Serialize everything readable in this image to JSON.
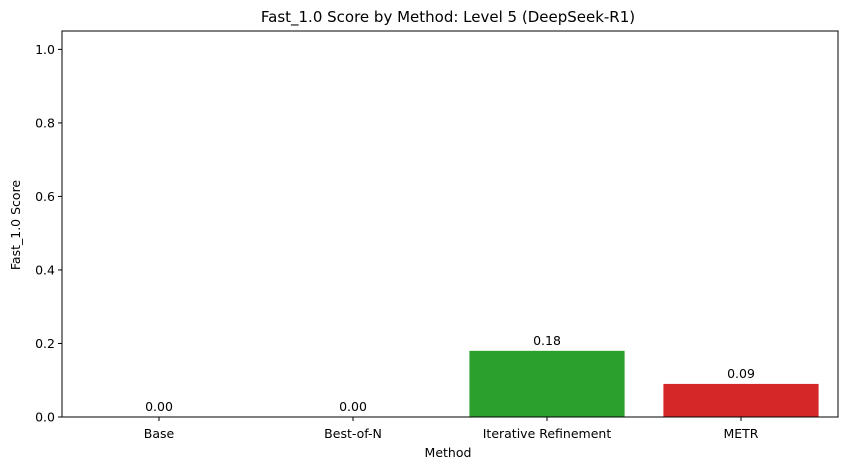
{
  "chart_data": {
    "type": "bar",
    "title": "Fast_1.0 Score by Method: Level 5 (DeepSeek-R1)",
    "xlabel": "Method",
    "ylabel": "Fast_1.0 Score",
    "categories": [
      "Base",
      "Best-of-N",
      "Iterative Refinement",
      "METR"
    ],
    "values": [
      0.0,
      0.0,
      0.18,
      0.09
    ],
    "value_labels": [
      "0.00",
      "0.00",
      "0.18",
      "0.09"
    ],
    "colors": [
      "#1f77b4",
      "#ff7f0e",
      "#2ca02c",
      "#d62728"
    ],
    "ylim": [
      0,
      1.05
    ],
    "yticks": [
      0.0,
      0.2,
      0.4,
      0.6,
      0.8,
      1.0
    ],
    "ytick_labels": [
      "0.0",
      "0.2",
      "0.4",
      "0.6",
      "0.8",
      "1.0"
    ],
    "grid": false,
    "legend": "none"
  }
}
